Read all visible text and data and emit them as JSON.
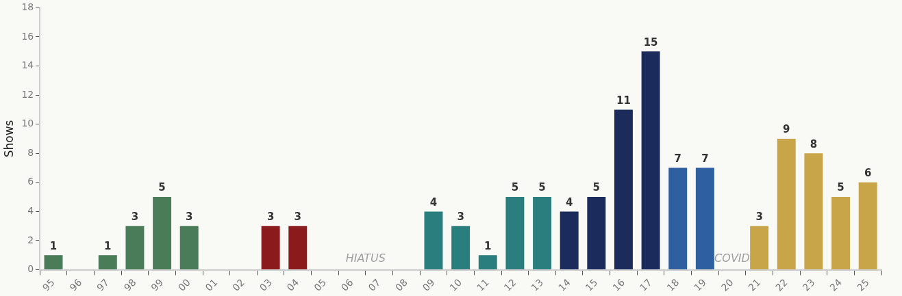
{
  "chart_data": {
    "type": "bar",
    "ylabel": "Shows",
    "categories": [
      "95",
      "96",
      "97",
      "98",
      "99",
      "00",
      "01",
      "02",
      "03",
      "04",
      "05",
      "06",
      "07",
      "08",
      "09",
      "10",
      "11",
      "12",
      "13",
      "14",
      "15",
      "16",
      "17",
      "18",
      "19",
      "20",
      "21",
      "22",
      "23",
      "24",
      "25"
    ],
    "values": [
      1,
      0,
      1,
      3,
      5,
      3,
      0,
      0,
      3,
      3,
      0,
      0,
      0,
      0,
      4,
      3,
      1,
      5,
      5,
      4,
      5,
      11,
      15,
      7,
      7,
      0,
      3,
      9,
      8,
      5,
      6
    ],
    "value_labels": [
      "1",
      null,
      "1",
      "3",
      "5",
      "3",
      null,
      null,
      "3",
      "3",
      null,
      null,
      null,
      null,
      "4",
      "3",
      "1",
      "5",
      "5",
      "4",
      "5",
      "11",
      "15",
      "7",
      "7",
      null,
      "3",
      "9",
      "8",
      "5",
      "6"
    ],
    "colors": [
      "#4a7c59",
      "#4a7c59",
      "#4a7c59",
      "#4a7c59",
      "#4a7c59",
      "#4a7c59",
      "#4a7c59",
      "#4a7c59",
      "#8b1a1c",
      "#8b1a1c",
      "#2a7f7e",
      "#2a7f7e",
      "#2a7f7e",
      "#2a7f7e",
      "#2a7f7e",
      "#2a7f7e",
      "#2a7f7e",
      "#2a7f7e",
      "#2a7f7e",
      "#1b2b5b",
      "#1b2b5b",
      "#1b2b5b",
      "#1b2b5b",
      "#2e5fa0",
      "#2e5fa0",
      "#c9a54a",
      "#c9a54a",
      "#c9a54a",
      "#c9a54a",
      "#c9a54a",
      "#c9a54a"
    ],
    "ylim": [
      0,
      18
    ],
    "yticks": [
      0,
      2,
      4,
      6,
      8,
      10,
      12,
      14,
      16,
      18
    ],
    "annotations": [
      "HIATUS",
      "COVID"
    ],
    "grid": false,
    "legend": false
  }
}
